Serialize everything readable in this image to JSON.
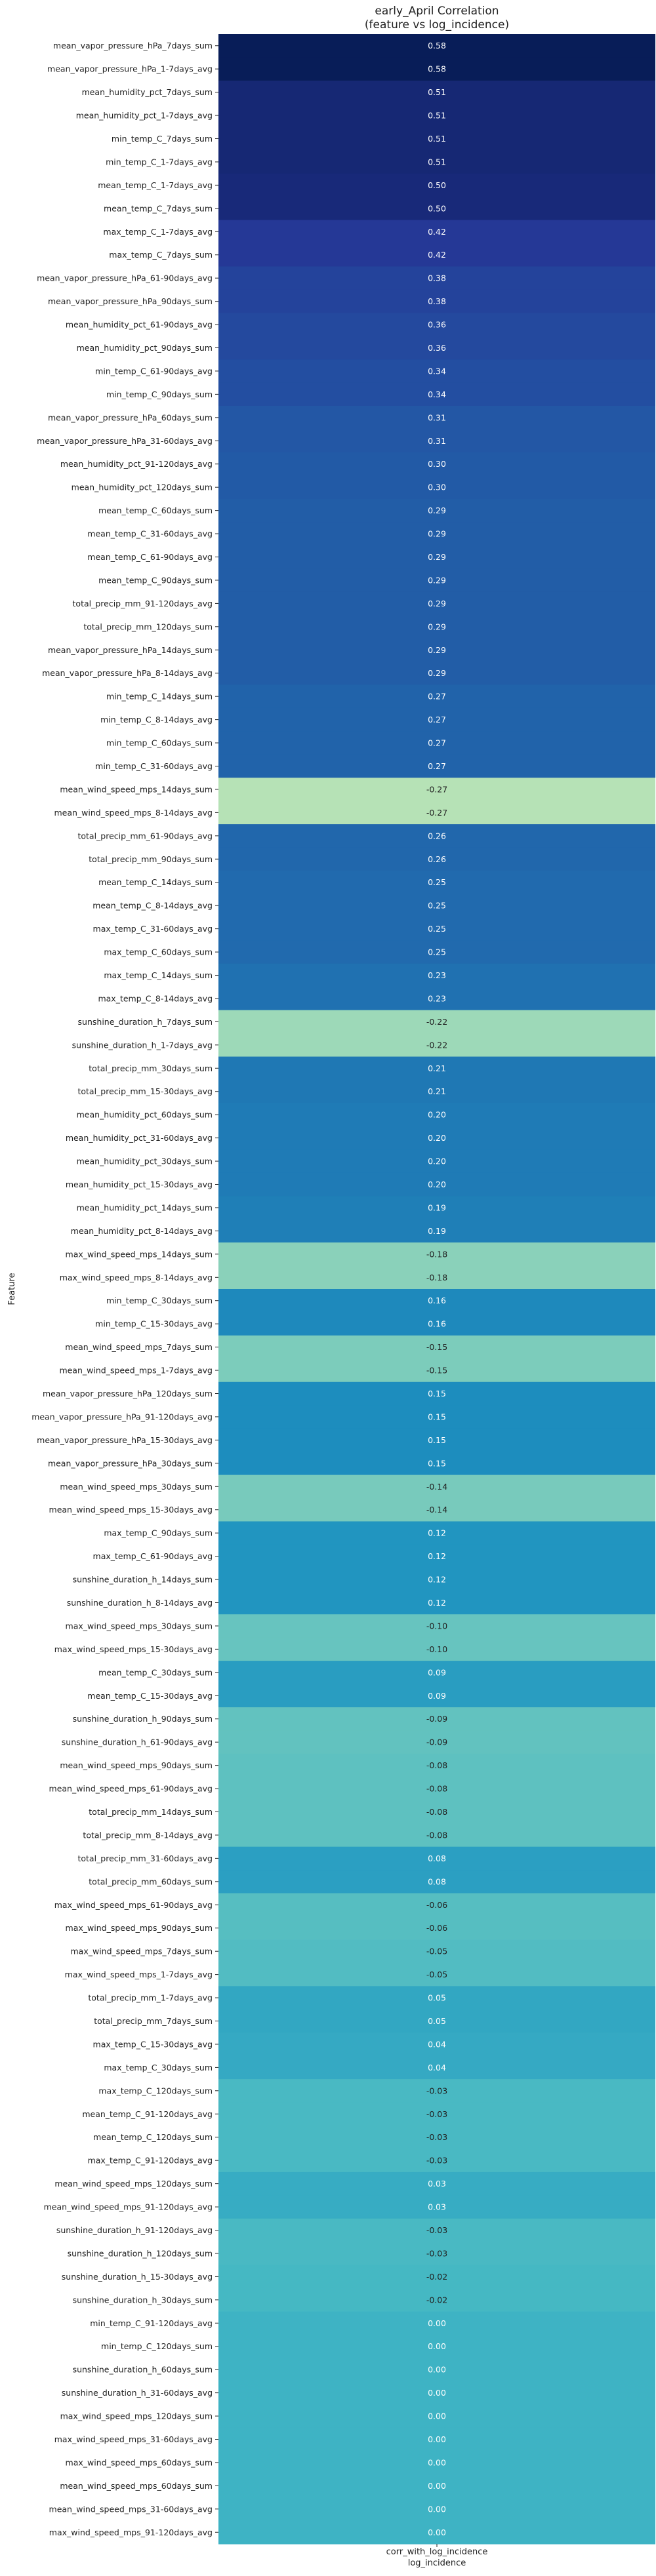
{
  "chart_data": {
    "type": "heatmap",
    "title_line1": "early_April Correlation",
    "title_line2": "(feature vs log_incidence)",
    "ylabel": "Feature",
    "xlabel": "log_incidence",
    "column": "corr_with_log_incidence",
    "rows": [
      {
        "feature": "mean_vapor_pressure_hPa_7days_sum",
        "value": 0.58
      },
      {
        "feature": "mean_vapor_pressure_hPa_1-7days_avg",
        "value": 0.58
      },
      {
        "feature": "mean_humidity_pct_7days_sum",
        "value": 0.51
      },
      {
        "feature": "mean_humidity_pct_1-7days_avg",
        "value": 0.51
      },
      {
        "feature": "min_temp_C_7days_sum",
        "value": 0.51
      },
      {
        "feature": "min_temp_C_1-7days_avg",
        "value": 0.51
      },
      {
        "feature": "mean_temp_C_1-7days_avg",
        "value": 0.5
      },
      {
        "feature": "mean_temp_C_7days_sum",
        "value": 0.5
      },
      {
        "feature": "max_temp_C_1-7days_avg",
        "value": 0.42
      },
      {
        "feature": "max_temp_C_7days_sum",
        "value": 0.42
      },
      {
        "feature": "mean_vapor_pressure_hPa_61-90days_avg",
        "value": 0.38
      },
      {
        "feature": "mean_vapor_pressure_hPa_90days_sum",
        "value": 0.38
      },
      {
        "feature": "mean_humidity_pct_61-90days_avg",
        "value": 0.36
      },
      {
        "feature": "mean_humidity_pct_90days_sum",
        "value": 0.36
      },
      {
        "feature": "min_temp_C_61-90days_avg",
        "value": 0.34
      },
      {
        "feature": "min_temp_C_90days_sum",
        "value": 0.34
      },
      {
        "feature": "mean_vapor_pressure_hPa_60days_sum",
        "value": 0.31
      },
      {
        "feature": "mean_vapor_pressure_hPa_31-60days_avg",
        "value": 0.31
      },
      {
        "feature": "mean_humidity_pct_91-120days_avg",
        "value": 0.3
      },
      {
        "feature": "mean_humidity_pct_120days_sum",
        "value": 0.3
      },
      {
        "feature": "mean_temp_C_60days_sum",
        "value": 0.29
      },
      {
        "feature": "mean_temp_C_31-60days_avg",
        "value": 0.29
      },
      {
        "feature": "mean_temp_C_61-90days_avg",
        "value": 0.29
      },
      {
        "feature": "mean_temp_C_90days_sum",
        "value": 0.29
      },
      {
        "feature": "total_precip_mm_91-120days_avg",
        "value": 0.29
      },
      {
        "feature": "total_precip_mm_120days_sum",
        "value": 0.29
      },
      {
        "feature": "mean_vapor_pressure_hPa_14days_sum",
        "value": 0.29
      },
      {
        "feature": "mean_vapor_pressure_hPa_8-14days_avg",
        "value": 0.29
      },
      {
        "feature": "min_temp_C_14days_sum",
        "value": 0.27
      },
      {
        "feature": "min_temp_C_8-14days_avg",
        "value": 0.27
      },
      {
        "feature": "min_temp_C_60days_sum",
        "value": 0.27
      },
      {
        "feature": "min_temp_C_31-60days_avg",
        "value": 0.27
      },
      {
        "feature": "mean_wind_speed_mps_14days_sum",
        "value": -0.27
      },
      {
        "feature": "mean_wind_speed_mps_8-14days_avg",
        "value": -0.27
      },
      {
        "feature": "total_precip_mm_61-90days_avg",
        "value": 0.26
      },
      {
        "feature": "total_precip_mm_90days_sum",
        "value": 0.26
      },
      {
        "feature": "mean_temp_C_14days_sum",
        "value": 0.25
      },
      {
        "feature": "mean_temp_C_8-14days_avg",
        "value": 0.25
      },
      {
        "feature": "max_temp_C_31-60days_avg",
        "value": 0.25
      },
      {
        "feature": "max_temp_C_60days_sum",
        "value": 0.25
      },
      {
        "feature": "max_temp_C_14days_sum",
        "value": 0.23
      },
      {
        "feature": "max_temp_C_8-14days_avg",
        "value": 0.23
      },
      {
        "feature": "sunshine_duration_h_7days_sum",
        "value": -0.22
      },
      {
        "feature": "sunshine_duration_h_1-7days_avg",
        "value": -0.22
      },
      {
        "feature": "total_precip_mm_30days_sum",
        "value": 0.21
      },
      {
        "feature": "total_precip_mm_15-30days_avg",
        "value": 0.21
      },
      {
        "feature": "mean_humidity_pct_60days_sum",
        "value": 0.2
      },
      {
        "feature": "mean_humidity_pct_31-60days_avg",
        "value": 0.2
      },
      {
        "feature": "mean_humidity_pct_30days_sum",
        "value": 0.2
      },
      {
        "feature": "mean_humidity_pct_15-30days_avg",
        "value": 0.2
      },
      {
        "feature": "mean_humidity_pct_14days_sum",
        "value": 0.19
      },
      {
        "feature": "mean_humidity_pct_8-14days_avg",
        "value": 0.19
      },
      {
        "feature": "max_wind_speed_mps_14days_sum",
        "value": -0.18
      },
      {
        "feature": "max_wind_speed_mps_8-14days_avg",
        "value": -0.18
      },
      {
        "feature": "min_temp_C_30days_sum",
        "value": 0.16
      },
      {
        "feature": "min_temp_C_15-30days_avg",
        "value": 0.16
      },
      {
        "feature": "mean_wind_speed_mps_7days_sum",
        "value": -0.15
      },
      {
        "feature": "mean_wind_speed_mps_1-7days_avg",
        "value": -0.15
      },
      {
        "feature": "mean_vapor_pressure_hPa_120days_sum",
        "value": 0.15
      },
      {
        "feature": "mean_vapor_pressure_hPa_91-120days_avg",
        "value": 0.15
      },
      {
        "feature": "mean_vapor_pressure_hPa_15-30days_avg",
        "value": 0.15
      },
      {
        "feature": "mean_vapor_pressure_hPa_30days_sum",
        "value": 0.15
      },
      {
        "feature": "mean_wind_speed_mps_30days_sum",
        "value": -0.14
      },
      {
        "feature": "mean_wind_speed_mps_15-30days_avg",
        "value": -0.14
      },
      {
        "feature": "max_temp_C_90days_sum",
        "value": 0.12
      },
      {
        "feature": "max_temp_C_61-90days_avg",
        "value": 0.12
      },
      {
        "feature": "sunshine_duration_h_14days_sum",
        "value": 0.12
      },
      {
        "feature": "sunshine_duration_h_8-14days_avg",
        "value": 0.12
      },
      {
        "feature": "max_wind_speed_mps_30days_sum",
        "value": -0.1
      },
      {
        "feature": "max_wind_speed_mps_15-30days_avg",
        "value": -0.1
      },
      {
        "feature": "mean_temp_C_30days_sum",
        "value": 0.09
      },
      {
        "feature": "mean_temp_C_15-30days_avg",
        "value": 0.09
      },
      {
        "feature": "sunshine_duration_h_90days_sum",
        "value": -0.09
      },
      {
        "feature": "sunshine_duration_h_61-90days_avg",
        "value": -0.09
      },
      {
        "feature": "mean_wind_speed_mps_90days_sum",
        "value": -0.08
      },
      {
        "feature": "mean_wind_speed_mps_61-90days_avg",
        "value": -0.08
      },
      {
        "feature": "total_precip_mm_14days_sum",
        "value": -0.08
      },
      {
        "feature": "total_precip_mm_8-14days_avg",
        "value": -0.08
      },
      {
        "feature": "total_precip_mm_31-60days_avg",
        "value": 0.08
      },
      {
        "feature": "total_precip_mm_60days_sum",
        "value": 0.08
      },
      {
        "feature": "max_wind_speed_mps_61-90days_avg",
        "value": -0.06
      },
      {
        "feature": "max_wind_speed_mps_90days_sum",
        "value": -0.06
      },
      {
        "feature": "max_wind_speed_mps_7days_sum",
        "value": -0.05
      },
      {
        "feature": "max_wind_speed_mps_1-7days_avg",
        "value": -0.05
      },
      {
        "feature": "total_precip_mm_1-7days_avg",
        "value": 0.05
      },
      {
        "feature": "total_precip_mm_7days_sum",
        "value": 0.05
      },
      {
        "feature": "max_temp_C_15-30days_avg",
        "value": 0.04
      },
      {
        "feature": "max_temp_C_30days_sum",
        "value": 0.04
      },
      {
        "feature": "max_temp_C_120days_sum",
        "value": -0.03
      },
      {
        "feature": "mean_temp_C_91-120days_avg",
        "value": -0.03
      },
      {
        "feature": "mean_temp_C_120days_sum",
        "value": -0.03
      },
      {
        "feature": "max_temp_C_91-120days_avg",
        "value": -0.03
      },
      {
        "feature": "mean_wind_speed_mps_120days_sum",
        "value": 0.03
      },
      {
        "feature": "mean_wind_speed_mps_91-120days_avg",
        "value": 0.03
      },
      {
        "feature": "sunshine_duration_h_91-120days_avg",
        "value": -0.03
      },
      {
        "feature": "sunshine_duration_h_120days_sum",
        "value": -0.03
      },
      {
        "feature": "sunshine_duration_h_15-30days_avg",
        "value": -0.02
      },
      {
        "feature": "sunshine_duration_h_30days_sum",
        "value": -0.02
      },
      {
        "feature": "min_temp_C_91-120days_avg",
        "value": 0.0
      },
      {
        "feature": "min_temp_C_120days_sum",
        "value": 0.0
      },
      {
        "feature": "sunshine_duration_h_60days_sum",
        "value": -0.0
      },
      {
        "feature": "sunshine_duration_h_31-60days_avg",
        "value": -0.0
      },
      {
        "feature": "max_wind_speed_mps_120days_sum",
        "value": -0.0
      },
      {
        "feature": "max_wind_speed_mps_31-60days_avg",
        "value": -0.0
      },
      {
        "feature": "max_wind_speed_mps_60days_sum",
        "value": -0.0
      },
      {
        "feature": "mean_wind_speed_mps_60days_sum",
        "value": 0.0
      },
      {
        "feature": "mean_wind_speed_mps_31-60days_avg",
        "value": 0.0
      },
      {
        "feature": "max_wind_speed_mps_91-120days_avg",
        "value": -0.0
      }
    ],
    "colormap": "YlGnBu",
    "colorbar": false,
    "grid": false
  }
}
